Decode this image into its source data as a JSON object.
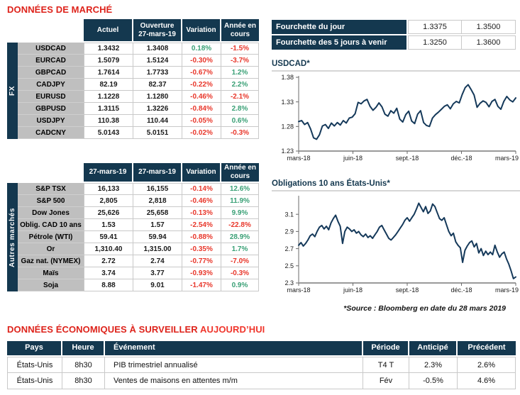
{
  "market_title": "DONNÉES DE MARCHÉ",
  "colors": {
    "navy": "#14384F",
    "title_red": "#DE231B",
    "highlight_red": "#F0352B",
    "positive_green": "#3AA076",
    "negative_red": "#E8362A",
    "label_gray": "#BFBFBF",
    "border_gray": "#C9C9C9",
    "chart_line": "#15395A"
  },
  "fx_table": {
    "side_label": "FX",
    "headers": [
      "Actuel",
      "Ouverture\n27-mars-19",
      "Variation",
      "Année en\ncours"
    ],
    "rows": [
      {
        "label": "USDCAD",
        "actuel": "1.3432",
        "ouverture": "1.3408",
        "variation": "0.18%",
        "ytd": "-1.5%"
      },
      {
        "label": "EURCAD",
        "actuel": "1.5079",
        "ouverture": "1.5124",
        "variation": "-0.30%",
        "ytd": "-3.7%"
      },
      {
        "label": "GBPCAD",
        "actuel": "1.7614",
        "ouverture": "1.7733",
        "variation": "-0.67%",
        "ytd": "1.2%"
      },
      {
        "label": "CADJPY",
        "actuel": "82.19",
        "ouverture": "82.37",
        "variation": "-0.22%",
        "ytd": "2.2%"
      },
      {
        "label": "EURUSD",
        "actuel": "1.1228",
        "ouverture": "1.1280",
        "variation": "-0.46%",
        "ytd": "-2.1%"
      },
      {
        "label": "GBPUSD",
        "actuel": "1.3115",
        "ouverture": "1.3226",
        "variation": "-0.84%",
        "ytd": "2.8%"
      },
      {
        "label": "USDJPY",
        "actuel": "110.38",
        "ouverture": "110.44",
        "variation": "-0.05%",
        "ytd": "0.6%"
      },
      {
        "label": "CADCNY",
        "actuel": "5.0143",
        "ouverture": "5.0151",
        "variation": "-0.02%",
        "ytd": "-0.3%"
      }
    ]
  },
  "markets_table": {
    "side_label": "Autres marchés",
    "headers": [
      "27-mars-19",
      "27-mars-19",
      "Variation",
      "Année en\ncours"
    ],
    "rows": [
      {
        "label": "S&P TSX",
        "close": "16,133",
        "prev": "16,155",
        "variation": "-0.14%",
        "ytd": "12.6%"
      },
      {
        "label": "S&P 500",
        "close": "2,805",
        "prev": "2,818",
        "variation": "-0.46%",
        "ytd": "11.9%"
      },
      {
        "label": "Dow Jones",
        "close": "25,626",
        "prev": "25,658",
        "variation": "-0.13%",
        "ytd": "9.9%"
      },
      {
        "label": "Oblig. CAD 10 ans",
        "close": "1.53",
        "prev": "1.57",
        "variation": "-2.54%",
        "ytd": "-22.8%"
      },
      {
        "label": "Pétrole (WTI)",
        "close": "59.41",
        "prev": "59.94",
        "variation": "-0.88%",
        "ytd": "28.9%"
      },
      {
        "label": "Or",
        "close": "1,310.40",
        "prev": "1,315.00",
        "variation": "-0.35%",
        "ytd": "1.7%"
      },
      {
        "label": "Gaz nat. (NYMEX)",
        "close": "2.72",
        "prev": "2.74",
        "variation": "-0.77%",
        "ytd": "-7.0%"
      },
      {
        "label": "Maïs",
        "close": "3.74",
        "prev": "3.77",
        "variation": "-0.93%",
        "ytd": "-0.3%"
      },
      {
        "label": "Soja",
        "close": "8.88",
        "prev": "9.01",
        "variation": "-1.47%",
        "ytd": "0.9%"
      }
    ]
  },
  "range_table": {
    "rows": [
      {
        "label": "Fourchette du jour",
        "low": "1.3375",
        "high": "1.3500"
      },
      {
        "label": "Fourchette des 5 jours à venir",
        "low": "1.3250",
        "high": "1.3600"
      }
    ]
  },
  "source_note": "*Source : Bloomberg en date du  28 mars 2019",
  "econ_section": {
    "title": "DONNÉES ÉCONOMIQUES À SURVEILLER",
    "title_highlight": "AUJOURD’HUI",
    "headers": [
      "Pays",
      "Heure",
      "Événement",
      "Période",
      "Anticipé",
      "Précédent"
    ],
    "rows": [
      {
        "pays": "États-Unis",
        "heure": "8h30",
        "evenement": "PIB trimestriel annualisé",
        "periode": "T4 T",
        "anticipe": "2.3%",
        "precedent": "2.6%"
      },
      {
        "pays": "États-Unis",
        "heure": "8h30",
        "evenement": "Ventes de maisons en attentes m/m",
        "periode": "Fév",
        "anticipe": "-0.5%",
        "precedent": "4.6%"
      }
    ]
  },
  "chart_data": [
    {
      "type": "line",
      "title": "USDCAD*",
      "x_labels": [
        "mars-18",
        "juin-18",
        "sept.-18",
        "déc.-18",
        "mars-19"
      ],
      "y_ticks": [
        1.38,
        1.33,
        1.28,
        1.23
      ],
      "y_tick_labels": [
        "1.38",
        "1.33",
        "1.28",
        "1.23"
      ],
      "ylim": [
        1.23,
        1.38
      ],
      "grid": false,
      "legend": "none",
      "line_color": "#15395A",
      "values": [
        1.29,
        1.292,
        1.284,
        1.288,
        1.275,
        1.257,
        1.254,
        1.263,
        1.281,
        1.284,
        1.276,
        1.287,
        1.281,
        1.288,
        1.283,
        1.292,
        1.287,
        1.297,
        1.299,
        1.306,
        1.329,
        1.326,
        1.332,
        1.335,
        1.321,
        1.313,
        1.319,
        1.328,
        1.32,
        1.305,
        1.301,
        1.312,
        1.307,
        1.317,
        1.295,
        1.289,
        1.304,
        1.311,
        1.291,
        1.286,
        1.305,
        1.312,
        1.288,
        1.282,
        1.28,
        1.297,
        1.304,
        1.309,
        1.315,
        1.321,
        1.324,
        1.316,
        1.326,
        1.331,
        1.328,
        1.345,
        1.359,
        1.365,
        1.355,
        1.344,
        1.319,
        1.327,
        1.332,
        1.329,
        1.32,
        1.331,
        1.335,
        1.321,
        1.315,
        1.331,
        1.341,
        1.334,
        1.33,
        1.338
      ]
    },
    {
      "type": "line",
      "title": "Obligations 10 ans États-Unis*",
      "x_labels": [
        "mars-18",
        "juin-18",
        "sept.-18",
        "déc.-18",
        "mars-19"
      ],
      "y_ticks": [
        3.1,
        2.9,
        2.7,
        2.5,
        2.3
      ],
      "y_tick_labels": [
        "3.1",
        "2.9",
        "2.7",
        "2.5",
        "2.3"
      ],
      "ylim": [
        2.3,
        3.3
      ],
      "grid": false,
      "legend": "none",
      "line_color": "#15395A",
      "values": [
        2.74,
        2.77,
        2.73,
        2.76,
        2.8,
        2.85,
        2.87,
        2.84,
        2.9,
        2.95,
        2.97,
        2.93,
        2.96,
        2.92,
        3.0,
        3.05,
        3.09,
        3.02,
        2.96,
        2.76,
        2.9,
        2.95,
        2.93,
        2.9,
        2.92,
        2.88,
        2.9,
        2.86,
        2.84,
        2.87,
        2.83,
        2.85,
        2.82,
        2.86,
        2.9,
        2.95,
        2.97,
        2.92,
        2.87,
        2.82,
        2.8,
        2.83,
        2.86,
        2.9,
        2.94,
        2.98,
        3.03,
        3.06,
        3.02,
        3.06,
        3.1,
        3.16,
        3.23,
        3.18,
        3.13,
        3.19,
        3.11,
        3.14,
        3.22,
        3.19,
        3.12,
        3.05,
        3.03,
        3.06,
        2.98,
        2.9,
        2.85,
        2.88,
        2.78,
        2.74,
        2.71,
        2.54,
        2.68,
        2.73,
        2.77,
        2.79,
        2.72,
        2.76,
        2.65,
        2.7,
        2.62,
        2.67,
        2.63,
        2.66,
        2.63,
        2.74,
        2.66,
        2.6,
        2.64,
        2.66,
        2.58,
        2.52,
        2.44,
        2.35,
        2.37
      ]
    }
  ]
}
